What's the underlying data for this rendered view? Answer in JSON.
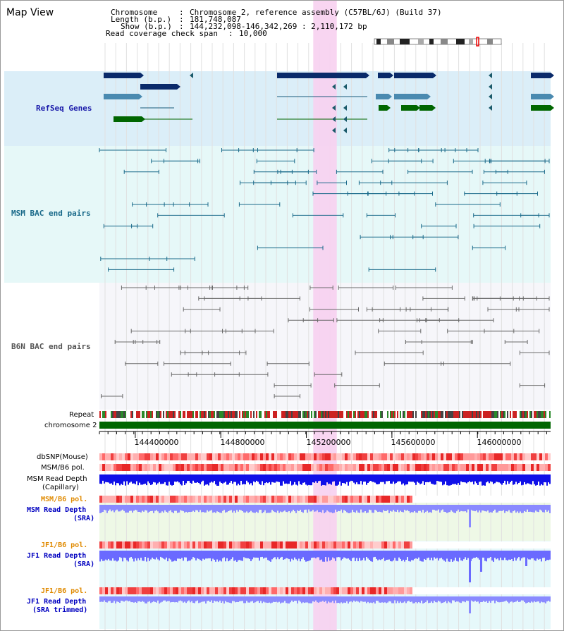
{
  "title": "Map View",
  "info": {
    "chromosome_key": "Chromosome",
    "chromosome_val": "Chromosome 2, reference assembly (C57BL/6J) (Build 37)",
    "length_key": "Length (b.p.)",
    "length_val": "181,748,087",
    "show_key": "Show (b.p.)",
    "show_val": "144,232,098-146,342,269 : 2,110,172 bp",
    "span_key": "Read coverage check span",
    "span_val": "10,000"
  },
  "tracks": {
    "refseq": "RefSeq Genes",
    "msm_bac": "MSM BAC end pairs",
    "b6n_bac": "B6N BAC end pairs",
    "repeat": "Repeat",
    "chromosome": "chromosome 2",
    "dbsnp": "dbSNP(Mouse)",
    "msm_pol1": "MSM/B6 pol.",
    "msm_depth_cap_1": "MSM Read Depth",
    "msm_depth_cap_2": "(Capillary)",
    "msm_pol2": "MSM/B6 pol.",
    "msm_depth_sra_1": "MSM Read Depth",
    "msm_depth_sra_2": "(SRA)",
    "jf1_pol1": "JF1/B6 pol.",
    "jf1_depth_sra_1": "JF1 Read Depth",
    "jf1_depth_sra_2": "(SRA)",
    "jf1_pol2": "JF1/B6 pol.",
    "jf1_depth_trim_1": "JF1 Read Depth",
    "jf1_depth_trim_2": "(SRA trimmed)"
  },
  "axis": {
    "ticks": [
      {
        "label": "144400000",
        "value": 144400000
      },
      {
        "label": "144800000",
        "value": 144800000
      },
      {
        "label": "145200000",
        "value": 145200000
      },
      {
        "label": "145600000",
        "value": 145600000
      },
      {
        "label": "146000000",
        "value": 146000000
      }
    ],
    "range": [
      144232098,
      146342269
    ]
  },
  "highlight_range": [
    145232000,
    145342000
  ],
  "colors": {
    "refseq_label": "#1a1aaa",
    "msm_label": "#1a6a8a",
    "b6n_label": "#555555",
    "orange_label": "#e08a00",
    "blue_label": "#0000c0",
    "highlight": "#f7d0f0",
    "chromosome_bar": "#006600"
  }
}
